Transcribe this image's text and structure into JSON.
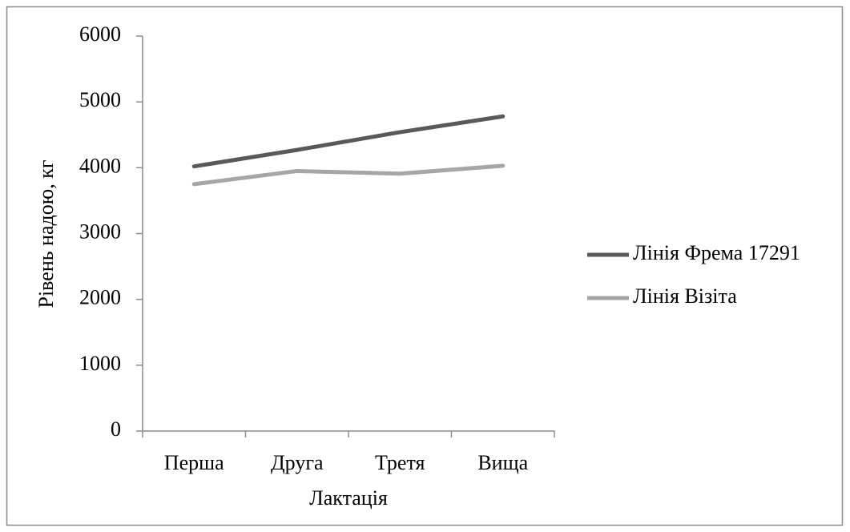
{
  "chart_data": {
    "type": "line",
    "x_label": "Лактація",
    "y_label": "Рівень надою, кг",
    "categories": [
      "Перша",
      "Друга",
      "Третя",
      "Вища"
    ],
    "series": [
      {
        "name": "Лінія Фрема 17291",
        "color": "#595959",
        "values": [
          4020,
          4270,
          4540,
          4780
        ]
      },
      {
        "name": "Лінія Візіта",
        "color": "#a6a6a6",
        "values": [
          3750,
          3950,
          3910,
          4030
        ]
      }
    ],
    "ylim": [
      0,
      6000
    ],
    "yticks": [
      0,
      1000,
      2000,
      3000,
      4000,
      5000,
      6000
    ],
    "grid": false,
    "legend": "right"
  }
}
